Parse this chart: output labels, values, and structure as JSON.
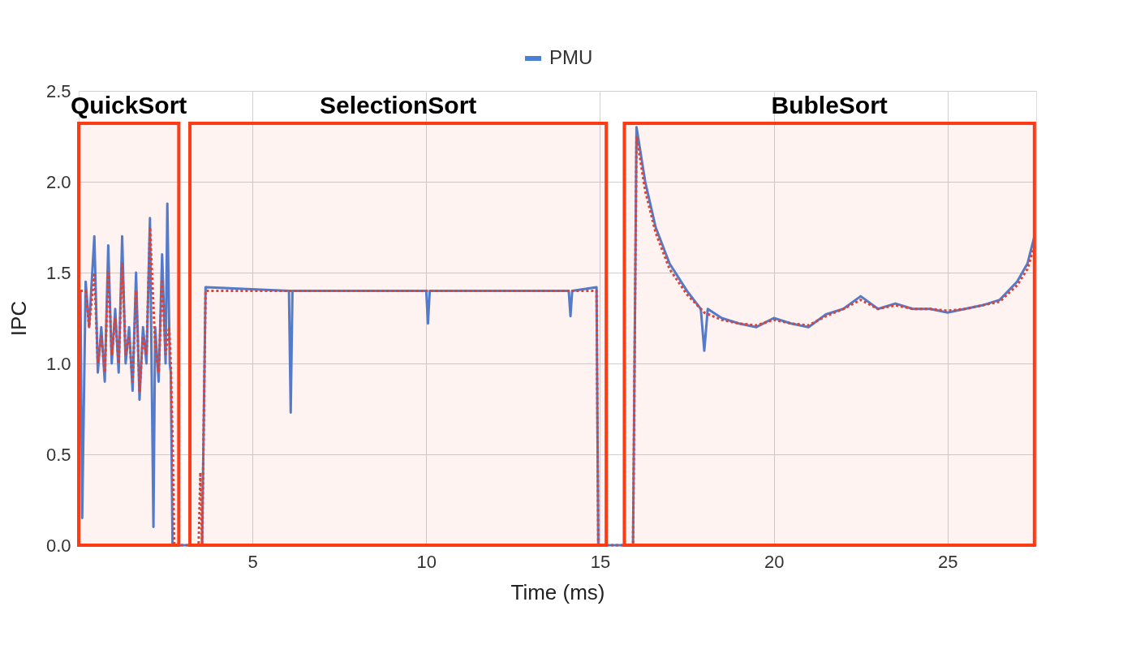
{
  "chart_data": {
    "type": "line",
    "xlabel": "Time (ms)",
    "ylabel": "IPC",
    "xlim": [
      0,
      27.55
    ],
    "xticks": [
      5,
      10,
      15,
      20,
      25
    ],
    "ylim": [
      0,
      2.5
    ],
    "yticks": [
      {
        "value": 0,
        "label": "0.0"
      },
      {
        "value": 0.5,
        "label": "0.5"
      },
      {
        "value": 1,
        "label": "1.0"
      },
      {
        "value": 1.5,
        "label": "1.5"
      },
      {
        "value": 2,
        "label": "2.0"
      },
      {
        "value": 2.5,
        "label": "2.5"
      }
    ],
    "grid": true,
    "legend": "top",
    "marker": "none",
    "series": [
      {
        "name": "PMU",
        "color": "#4a7fd6",
        "line_style": "solid",
        "x": [
          0.05,
          0.1,
          0.2,
          0.3,
          0.45,
          0.55,
          0.65,
          0.75,
          0.85,
          0.95,
          1.05,
          1.15,
          1.25,
          1.35,
          1.45,
          1.55,
          1.65,
          1.75,
          1.85,
          1.95,
          2.05,
          2.15,
          2.2,
          2.3,
          2.4,
          2.5,
          2.55,
          2.62,
          2.65,
          2.7,
          3.55,
          3.65,
          6.05,
          6.1,
          6.15,
          10.0,
          10.05,
          10.1,
          14.1,
          14.15,
          14.2,
          14.9,
          14.95,
          15.95,
          16.05,
          16.3,
          16.6,
          17.0,
          17.5,
          17.9,
          18.0,
          18.1,
          18.5,
          19.0,
          19.5,
          20.0,
          20.5,
          21.0,
          21.5,
          22.0,
          22.5,
          23.0,
          23.5,
          24.0,
          24.5,
          25.0,
          25.5,
          26.0,
          26.5,
          27.0,
          27.3,
          27.5
        ],
        "values": [
          1.4,
          0.15,
          1.45,
          1.2,
          1.7,
          0.95,
          1.2,
          0.9,
          1.65,
          1.0,
          1.3,
          0.95,
          1.7,
          1.0,
          1.2,
          0.85,
          1.5,
          0.8,
          1.2,
          1.0,
          1.8,
          0.1,
          1.2,
          0.9,
          1.6,
          1.0,
          1.88,
          1.0,
          0.95,
          0.0,
          0.0,
          1.42,
          1.4,
          0.73,
          1.4,
          1.4,
          1.22,
          1.4,
          1.4,
          1.26,
          1.4,
          1.42,
          0.0,
          0.0,
          2.3,
          2.0,
          1.75,
          1.55,
          1.4,
          1.3,
          1.07,
          1.3,
          1.25,
          1.22,
          1.2,
          1.25,
          1.22,
          1.2,
          1.27,
          1.3,
          1.37,
          1.3,
          1.33,
          1.3,
          1.3,
          1.28,
          1.3,
          1.32,
          1.35,
          1.45,
          1.55,
          1.7
        ]
      },
      {
        "color": "#d9453a",
        "line_style": "dotted",
        "x": [
          0.05,
          0.2,
          0.3,
          0.45,
          0.55,
          0.65,
          0.75,
          0.85,
          0.95,
          1.05,
          1.15,
          1.25,
          1.35,
          1.45,
          1.55,
          1.65,
          1.75,
          1.85,
          1.95,
          2.05,
          2.2,
          2.3,
          2.4,
          2.5,
          2.6,
          2.65,
          2.7,
          2.75,
          3.45,
          3.5,
          3.55,
          3.65,
          14.9,
          14.95,
          15.95,
          16.05,
          16.3,
          16.6,
          17.0,
          17.5,
          18.0,
          18.5,
          19.0,
          19.5,
          20.0,
          20.5,
          21.0,
          21.5,
          22.0,
          22.5,
          23.0,
          23.5,
          24.0,
          24.5,
          25.0,
          25.5,
          26.0,
          26.5,
          27.0,
          27.3,
          27.5
        ],
        "values": [
          1.4,
          1.4,
          1.2,
          1.5,
          1.0,
          1.15,
          0.95,
          1.5,
          1.05,
          1.25,
          1.0,
          1.55,
          1.05,
          1.15,
          0.9,
          1.4,
          0.85,
          1.15,
          1.05,
          1.75,
          1.1,
          0.95,
          1.45,
          1.05,
          1.2,
          1.0,
          0.58,
          0.0,
          0.0,
          0.4,
          0.0,
          1.4,
          1.4,
          0.0,
          0.0,
          2.25,
          1.95,
          1.72,
          1.52,
          1.38,
          1.28,
          1.24,
          1.22,
          1.21,
          1.24,
          1.22,
          1.21,
          1.26,
          1.3,
          1.35,
          1.3,
          1.32,
          1.3,
          1.3,
          1.29,
          1.3,
          1.32,
          1.34,
          1.43,
          1.52,
          1.65
        ]
      }
    ],
    "bands": [
      {
        "axis": "x",
        "from": 0,
        "to": 2.88,
        "label": "QuickSort",
        "color": "#ff3b14"
      },
      {
        "axis": "x",
        "from": 3.2,
        "to": 15.18,
        "label": "SelectionSort",
        "color": "#ff3b14"
      },
      {
        "axis": "x",
        "from": 15.7,
        "to": 27.5,
        "label": "BubleSort",
        "color": "#ff3b14"
      }
    ]
  }
}
